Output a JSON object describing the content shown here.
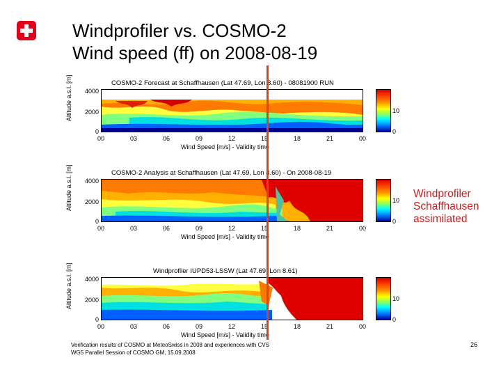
{
  "header": {
    "title_line1": "Windprofiler vs. COSMO-2",
    "title_line2": "Wind speed (ff) on 2008-08-19"
  },
  "colors": {
    "swiss_red": "#e3001b",
    "annotation_red": "#c81e1e",
    "marker_line": "#e3401a"
  },
  "panels": [
    {
      "title": "COSMO-2 Forecast at Schaffhausen (Lat 47.69, Lon 8.60) - 08081900 RUN",
      "ylabel": "Altitude a.s.l. [m]",
      "yticks": [
        "4000",
        "2000",
        "0"
      ],
      "xticks": [
        "00",
        "03",
        "06",
        "09",
        "12",
        "15",
        "18",
        "21",
        "00"
      ],
      "xlabel": "Wind Speed [m/s] - Validity time",
      "cbar_ticks": [
        "10",
        "0"
      ]
    },
    {
      "title": "COSMO-2 Analysis at Schaffhausen (Lat 47.69, Lon 8.60) - On 2008-08-19",
      "ylabel": "Altitude a.s.l. [m]",
      "yticks": [
        "4000",
        "2000",
        "0"
      ],
      "xticks": [
        "00",
        "03",
        "06",
        "09",
        "12",
        "15",
        "18",
        "21",
        "00"
      ],
      "xlabel": "Wind Speed [m/s] - Validity time",
      "cbar_ticks": [
        "10",
        "0"
      ]
    },
    {
      "title": "Windprofiler IUPD53-LSSW (Lat 47.69, Lon 8.61)",
      "ylabel": "Altitude a.s.l. [m]",
      "yticks": [
        "4000",
        "2000",
        "0"
      ],
      "xticks": [
        "00",
        "03",
        "06",
        "09",
        "12",
        "15",
        "18",
        "21",
        "00"
      ],
      "xlabel": "Wind Speed [m/s] - Validity time",
      "cbar_ticks": [
        "10",
        "0"
      ]
    }
  ],
  "annotation": {
    "line1": "Windprofiler",
    "line2": "Schaffhausen",
    "line3": "assimilated"
  },
  "footer": {
    "line1": "Verification results of COSMO at MeteoSwiss in 2008 and experiences with CVS",
    "line2": "WG5 Parallel Session of COSMO GM, 15.09.2008",
    "page_number": "26"
  }
}
